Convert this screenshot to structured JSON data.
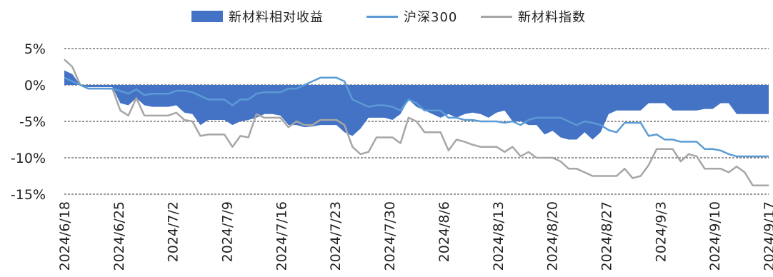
{
  "chart_data": {
    "type": "line",
    "title": "",
    "xlabel": "",
    "ylabel": "",
    "ylim": [
      -15,
      5
    ],
    "yticks": [
      5,
      0,
      -5,
      -10,
      -15
    ],
    "ytick_labels": [
      "5%",
      "0%",
      "-5%",
      "-10%",
      "-15%"
    ],
    "x_start": "2024-06-18",
    "xtick_labels": [
      "2024/6/18",
      "2024/6/25",
      "2024/7/2",
      "2024/7/9",
      "2024/7/16",
      "2024/7/23",
      "2024/7/30",
      "2024/8/6",
      "2024/8/13",
      "2024/8/20",
      "2024/8/27",
      "2024/9/3",
      "2024/9/10",
      "2024/9/17"
    ],
    "grid": "horizontal dashed",
    "legend_position": "top",
    "series": [
      {
        "name": "新材料相对收益",
        "kind": "area",
        "color": "#4472C4",
        "values": [
          2,
          1.5,
          0,
          -0.3,
          -0.3,
          -0.3,
          -0.3,
          -2.5,
          -2.8,
          -1.8,
          -2.8,
          -3,
          -3,
          -3,
          -2.8,
          -3.8,
          -4,
          -5.5,
          -4.8,
          -4.8,
          -4.8,
          -5.5,
          -5,
          -4.8,
          -4.5,
          -4,
          -4,
          -4.2,
          -5.5,
          -5.5,
          -5.8,
          -5.7,
          -5.5,
          -5.5,
          -5.5,
          -6.5,
          -7,
          -6,
          -4.5,
          -4.5,
          -4.5,
          -4.8,
          -4,
          -2,
          -3,
          -3.5,
          -4,
          -4.5,
          -4,
          -4.5,
          -4,
          -3.8,
          -4,
          -4.5,
          -3.8,
          -3.5,
          -5,
          -5,
          -5.5,
          -5.5,
          -6.8,
          -6.3,
          -7.2,
          -7.5,
          -7.5,
          -6.5,
          -7.5,
          -6.5,
          -4,
          -3.5,
          -3.5,
          -3.5,
          -3.5,
          -2.5,
          -2.5,
          -2.5,
          -3.5,
          -3.5,
          -3.5,
          -3.5,
          -3.3,
          -3.3,
          -2.5,
          -2.5,
          -4,
          -4,
          -4,
          -4,
          -4
        ]
      },
      {
        "name": "沪深300",
        "kind": "line",
        "color": "#5B9BD5",
        "values": [
          1,
          0.5,
          0,
          -0.5,
          -0.5,
          -0.5,
          -0.5,
          -0.8,
          -1.2,
          -0.6,
          -1.4,
          -1.2,
          -1.2,
          -1.2,
          -0.8,
          -0.8,
          -1,
          -1.5,
          -2,
          -2,
          -2,
          -2.8,
          -2,
          -2,
          -1.2,
          -1,
          -1,
          -1,
          -0.5,
          -0.5,
          0,
          0.5,
          1,
          1,
          1,
          0.5,
          -2,
          -2.5,
          -3,
          -2.8,
          -2.8,
          -3,
          -3.5,
          -2,
          -2.5,
          -3.5,
          -3.5,
          -3.5,
          -4.5,
          -4.5,
          -4.8,
          -4.8,
          -5,
          -5,
          -5,
          -5.2,
          -5,
          -5.5,
          -4.8,
          -4.5,
          -4.5,
          -4.5,
          -4.5,
          -5,
          -5.5,
          -5,
          -5.2,
          -5.5,
          -6.2,
          -6.5,
          -5.2,
          -5.2,
          -5.2,
          -7,
          -6.8,
          -7.5,
          -7.5,
          -7.8,
          -7.8,
          -7.8,
          -8.8,
          -8.8,
          -9,
          -9.5,
          -9.8,
          -9.8,
          -9.8,
          -9.8,
          -9.8
        ]
      },
      {
        "name": "新材料指数",
        "kind": "line",
        "color": "#A6A6A6",
        "values": [
          3.5,
          2.5,
          0,
          -0.5,
          -0.5,
          -0.5,
          -0.5,
          -3.5,
          -4.2,
          -1.8,
          -4.2,
          -4.2,
          -4.2,
          -4.2,
          -3.8,
          -4.8,
          -5,
          -7,
          -6.8,
          -6.8,
          -6.8,
          -8.5,
          -7,
          -7.2,
          -4,
          -4.5,
          -4.5,
          -4.5,
          -5.8,
          -5,
          -5.5,
          -5.5,
          -4.8,
          -4.8,
          -4.8,
          -5.5,
          -8.5,
          -9.5,
          -9.2,
          -7.2,
          -7.2,
          -7.2,
          -8,
          -4.5,
          -5,
          -6.5,
          -6.5,
          -6.5,
          -9,
          -7.5,
          -7.8,
          -8.2,
          -8.5,
          -8.5,
          -8.5,
          -9.2,
          -8.5,
          -9.8,
          -9.2,
          -10,
          -10,
          -10,
          -10.5,
          -11.5,
          -11.5,
          -12,
          -12.5,
          -12.5,
          -12.5,
          -12.5,
          -11.5,
          -12.8,
          -12.5,
          -11,
          -8.8,
          -8.8,
          -8.8,
          -10.5,
          -9.5,
          -9.8,
          -11.5,
          -11.5,
          -11.5,
          -12,
          -11.2,
          -12,
          -13.8,
          -13.8,
          -13.8
        ]
      }
    ]
  }
}
